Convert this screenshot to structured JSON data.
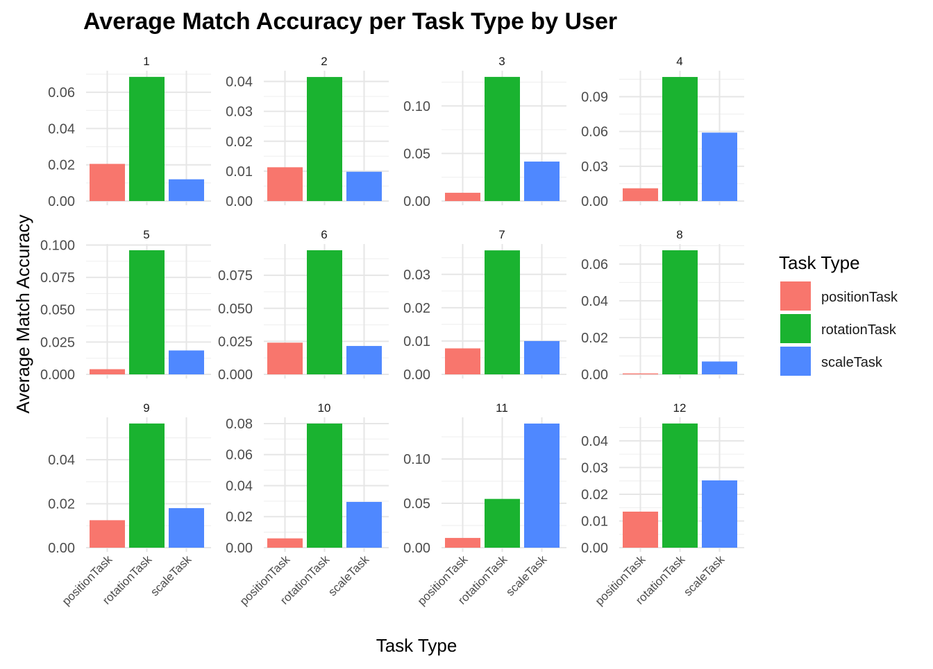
{
  "chart_data": {
    "type": "bar",
    "title": "Average Match Accuracy per Task Type by User",
    "xlabel": "Task Type",
    "ylabel": "Average Match Accuracy",
    "categories": [
      "positionTask",
      "rotationTask",
      "scaleTask"
    ],
    "colors": [
      "#F8766D",
      "#1AB330",
      "#4F88FF"
    ],
    "grid": true,
    "legend": {
      "title": "Task Type",
      "position": "right",
      "entries": [
        "positionTask",
        "rotationTask",
        "scaleTask"
      ]
    },
    "panels": [
      {
        "label": "1",
        "values": [
          0.0205,
          0.0685,
          0.012
        ],
        "ticks": [
          "0.00",
          "0.02",
          "0.04",
          "0.06"
        ],
        "tick_values": [
          0,
          0.02,
          0.04,
          0.06
        ],
        "ylim": [
          0,
          0.0719
        ]
      },
      {
        "label": "2",
        "values": [
          0.0113,
          0.0415,
          0.0098
        ],
        "ticks": [
          "0.00",
          "0.01",
          "0.02",
          "0.03",
          "0.04"
        ],
        "tick_values": [
          0,
          0.01,
          0.02,
          0.03,
          0.04
        ],
        "ylim": [
          0,
          0.0436
        ]
      },
      {
        "label": "3",
        "values": [
          0.0087,
          0.1305,
          0.0415
        ],
        "ticks": [
          "0.00",
          "0.05",
          "0.10"
        ],
        "tick_values": [
          0,
          0.05,
          0.1
        ],
        "ylim": [
          0,
          0.137
        ]
      },
      {
        "label": "4",
        "values": [
          0.011,
          0.107,
          0.059
        ],
        "ticks": [
          "0.00",
          "0.03",
          "0.06",
          "0.09"
        ],
        "tick_values": [
          0,
          0.03,
          0.06,
          0.09
        ],
        "ylim": [
          0,
          0.1124
        ]
      },
      {
        "label": "5",
        "values": [
          0.004,
          0.096,
          0.0185
        ],
        "ticks": [
          "0.000",
          "0.025",
          "0.050",
          "0.075",
          "0.100"
        ],
        "tick_values": [
          0,
          0.025,
          0.05,
          0.075,
          0.1
        ],
        "ylim": [
          0,
          0.1008
        ]
      },
      {
        "label": "6",
        "values": [
          0.024,
          0.094,
          0.0215
        ],
        "ticks": [
          "0.000",
          "0.025",
          "0.050",
          "0.075"
        ],
        "tick_values": [
          0,
          0.025,
          0.05,
          0.075
        ],
        "ylim": [
          0,
          0.0987
        ]
      },
      {
        "label": "7",
        "values": [
          0.0078,
          0.0372,
          0.01
        ],
        "ticks": [
          "0.00",
          "0.01",
          "0.02",
          "0.03"
        ],
        "tick_values": [
          0,
          0.01,
          0.02,
          0.03
        ],
        "ylim": [
          0,
          0.0391
        ]
      },
      {
        "label": "8",
        "values": [
          0.0005,
          0.0675,
          0.007
        ],
        "ticks": [
          "0.00",
          "0.02",
          "0.04",
          "0.06"
        ],
        "tick_values": [
          0,
          0.02,
          0.04,
          0.06
        ],
        "ylim": [
          0,
          0.0709
        ]
      },
      {
        "label": "9",
        "values": [
          0.0125,
          0.0565,
          0.018
        ],
        "ticks": [
          "0.00",
          "0.02",
          "0.04"
        ],
        "tick_values": [
          0,
          0.02,
          0.04
        ],
        "ylim": [
          0,
          0.0593
        ]
      },
      {
        "label": "10",
        "values": [
          0.006,
          0.08,
          0.0295
        ],
        "ticks": [
          "0.00",
          "0.02",
          "0.04",
          "0.06",
          "0.08"
        ],
        "tick_values": [
          0,
          0.02,
          0.04,
          0.06,
          0.08
        ],
        "ylim": [
          0,
          0.084
        ]
      },
      {
        "label": "11",
        "values": [
          0.011,
          0.055,
          0.14
        ],
        "ticks": [
          "0.00",
          "0.05",
          "0.10"
        ],
        "tick_values": [
          0,
          0.05,
          0.1
        ],
        "ylim": [
          0,
          0.147
        ]
      },
      {
        "label": "12",
        "values": [
          0.0135,
          0.0465,
          0.0252
        ],
        "ticks": [
          "0.00",
          "0.01",
          "0.02",
          "0.03",
          "0.04"
        ],
        "tick_values": [
          0,
          0.01,
          0.02,
          0.03,
          0.04
        ],
        "ylim": [
          0,
          0.0488
        ]
      }
    ]
  }
}
